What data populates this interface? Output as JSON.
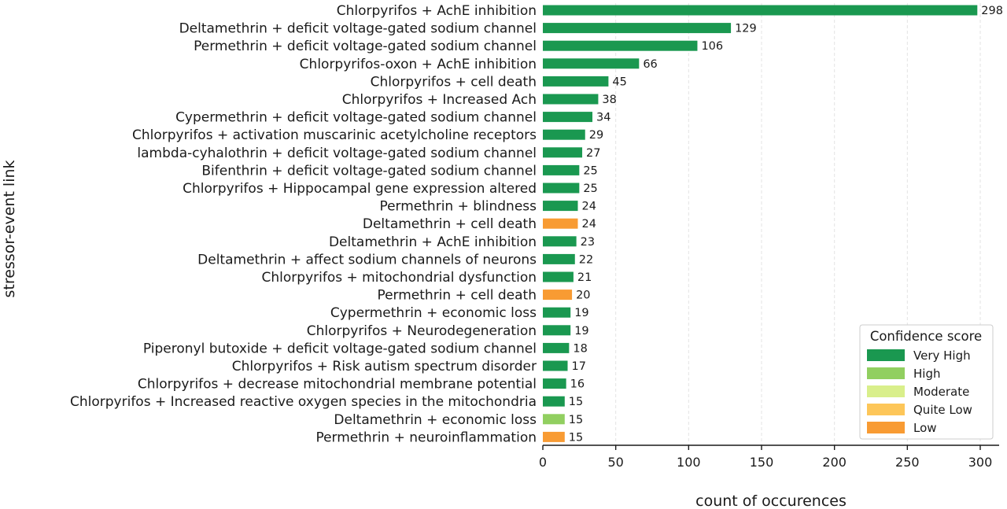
{
  "chart_data": {
    "type": "bar",
    "orientation": "horizontal",
    "xlabel": "count of occurences",
    "ylabel": "stressor-event link",
    "xlim": [
      0,
      310
    ],
    "xticks": [
      0,
      50,
      100,
      150,
      200,
      250,
      300
    ],
    "grid": "vertical dashed",
    "categories": [
      "Chlorpyrifos + AchE inhibition",
      "Deltamethrin + deficit voltage-gated sodium channel",
      "Permethrin + deficit voltage-gated sodium channel",
      "Chlorpyrifos-oxon + AchE inhibition",
      "Chlorpyrifos + cell death",
      "Chlorpyrifos + Increased Ach",
      "Cypermethrin + deficit voltage-gated sodium channel",
      "Chlorpyrifos + activation muscarinic acetylcholine receptors",
      "lambda-cyhalothrin + deficit voltage-gated sodium channel",
      "Bifenthrin + deficit voltage-gated sodium channel",
      "Chlorpyrifos + Hippocampal gene expression altered",
      "Permethrin + blindness",
      "Deltamethrin + cell death",
      "Deltamethrin + AchE inhibition",
      "Deltamethrin + affect sodium channels of neurons",
      "Chlorpyrifos + mitochondrial dysfunction",
      "Permethrin + cell death",
      "Cypermethrin + economic loss",
      "Chlorpyrifos + Neurodegeneration",
      "Piperonyl butoxide + deficit voltage-gated sodium channel",
      "Chlorpyrifos + Risk autism spectrum disorder",
      "Chlorpyrifos + decrease mitochondrial membrane potential",
      "Chlorpyrifos + Increased reactive oxygen species in the mitochondria",
      "Deltamethrin + economic loss",
      "Permethrin + neuroinflammation"
    ],
    "values": [
      298,
      129,
      106,
      66,
      45,
      38,
      34,
      29,
      27,
      25,
      25,
      24,
      24,
      23,
      22,
      21,
      20,
      19,
      19,
      18,
      17,
      16,
      15,
      15,
      15
    ],
    "confidence": [
      "Very High",
      "Very High",
      "Very High",
      "Very High",
      "Very High",
      "Very High",
      "Very High",
      "Very High",
      "Very High",
      "Very High",
      "Very High",
      "Very High",
      "Low",
      "Very High",
      "Very High",
      "Very High",
      "Low",
      "Very High",
      "Very High",
      "Very High",
      "Very High",
      "Very High",
      "Very High",
      "High",
      "Low"
    ],
    "legend": {
      "title": "Confidence score",
      "position": "bottom-right",
      "entries": [
        {
          "label": "Very High",
          "color": "#1a9850"
        },
        {
          "label": "High",
          "color": "#91cf60"
        },
        {
          "label": "Moderate",
          "color": "#d9ef8b"
        },
        {
          "label": "Quite Low",
          "color": "#fdc659"
        },
        {
          "label": "Low",
          "color": "#f89b33"
        }
      ]
    }
  }
}
